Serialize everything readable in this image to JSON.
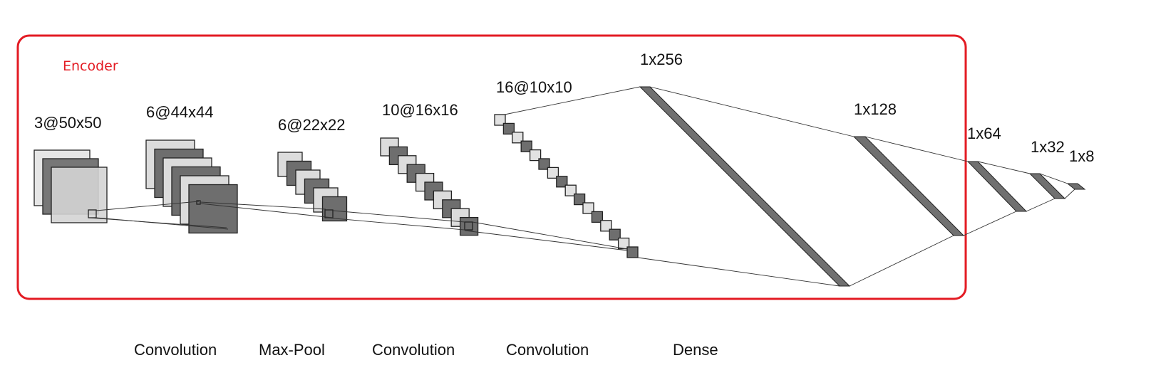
{
  "encoder": {
    "label": "Encoder",
    "color": "#e31b23"
  },
  "layers": {
    "input": {
      "label": "3@50x50"
    },
    "conv1": {
      "label": "6@44x44"
    },
    "pool1": {
      "label": "6@22x22"
    },
    "conv2": {
      "label": "10@16x16"
    },
    "conv3": {
      "label": "16@10x10"
    },
    "dense1": {
      "label": "1x256"
    },
    "dense2": {
      "label": "1x128"
    },
    "dense3": {
      "label": "1x64"
    },
    "dense4": {
      "label": "1x32"
    },
    "dense5": {
      "label": "1x8"
    }
  },
  "operations": [
    "Convolution",
    "Max-Pool",
    "Convolution",
    "Convolution",
    "Dense"
  ],
  "colors": {
    "light_map": "#dcdcdc",
    "dark_map": "#6e6e6e",
    "input_dark": "#888888",
    "conv_light": "#e2e2e2",
    "dense_fill": "#707070",
    "line": "#333333"
  }
}
